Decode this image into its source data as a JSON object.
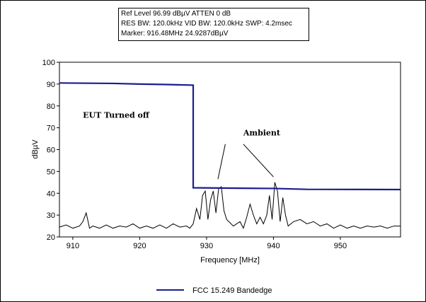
{
  "info": {
    "line1": "Ref Level 96.99 dBµV    ATTEN 0 dB",
    "line2": "RES BW: 120.0kHz  VID BW: 120.0kHz  SWP: 4.2msec",
    "line3": "Marker: 916.48MHz  24.9287dBµV"
  },
  "chart_data": {
    "type": "line",
    "xlabel": "Frequency [MHz]",
    "ylabel": "dBµV",
    "xlim": [
      908,
      959
    ],
    "ylim": [
      20,
      100
    ],
    "x_ticks": [
      910,
      920,
      930,
      940,
      950
    ],
    "y_ticks": [
      20,
      30,
      40,
      50,
      60,
      70,
      80,
      90,
      100
    ],
    "grid": false,
    "legend_position": "bottom-center",
    "annotations": [
      {
        "text": "EUT Turned off",
        "x": 911.5,
        "y": 74.5
      },
      {
        "text": "Ambient",
        "x": 935.5,
        "y": 66.5
      }
    ],
    "arrows": [
      {
        "from": [
          932.8,
          62.5
        ],
        "to": [
          931.7,
          46.5
        ]
      },
      {
        "from": [
          935.5,
          62.5
        ],
        "to": [
          940.0,
          47.5
        ]
      }
    ],
    "series": [
      {
        "name": "FCC 15.249 Bandedge",
        "color": "#1c1c8e",
        "x": [
          908,
          916,
          920,
          924,
          928.0,
          928.0,
          935,
          940,
          945,
          959
        ],
        "y": [
          90.5,
          90.3,
          90.0,
          89.8,
          89.5,
          42.5,
          42.3,
          42.2,
          41.8,
          41.7
        ]
      },
      {
        "name": "",
        "color": "#000000",
        "x": [
          908,
          909,
          910,
          911,
          911.5,
          912,
          912.5,
          913,
          914,
          915,
          916,
          917,
          918,
          919,
          920,
          921,
          922,
          923,
          924,
          925,
          926,
          927,
          927.5,
          928,
          928.5,
          929,
          929.4,
          929.8,
          930.2,
          930.6,
          931,
          931.4,
          931.8,
          932.2,
          932.6,
          933,
          934,
          935,
          935.5,
          936,
          936.5,
          937,
          937.5,
          938,
          938.5,
          939,
          939.4,
          939.8,
          940.2,
          940.6,
          941,
          941.4,
          941.8,
          942.2,
          943,
          944,
          945,
          946,
          947,
          948,
          949,
          950,
          951,
          952,
          953,
          954,
          955,
          956,
          957,
          958,
          959
        ],
        "y": [
          24.5,
          25.5,
          24,
          25,
          27,
          31,
          24,
          25,
          24,
          25.5,
          24,
          25,
          24.5,
          26,
          24,
          25,
          24,
          25.5,
          24,
          26,
          24.5,
          25,
          24,
          26,
          33,
          28,
          39,
          41,
          28,
          37,
          41,
          31,
          42,
          43,
          32,
          28,
          25,
          27,
          24,
          29,
          35,
          30,
          26,
          29,
          26,
          30,
          39,
          28,
          45,
          41,
          27,
          38,
          30,
          25,
          27,
          28,
          26,
          27,
          25,
          26,
          24,
          25.5,
          24,
          25,
          24,
          25,
          24.5,
          25,
          24,
          25,
          25
        ]
      }
    ]
  }
}
